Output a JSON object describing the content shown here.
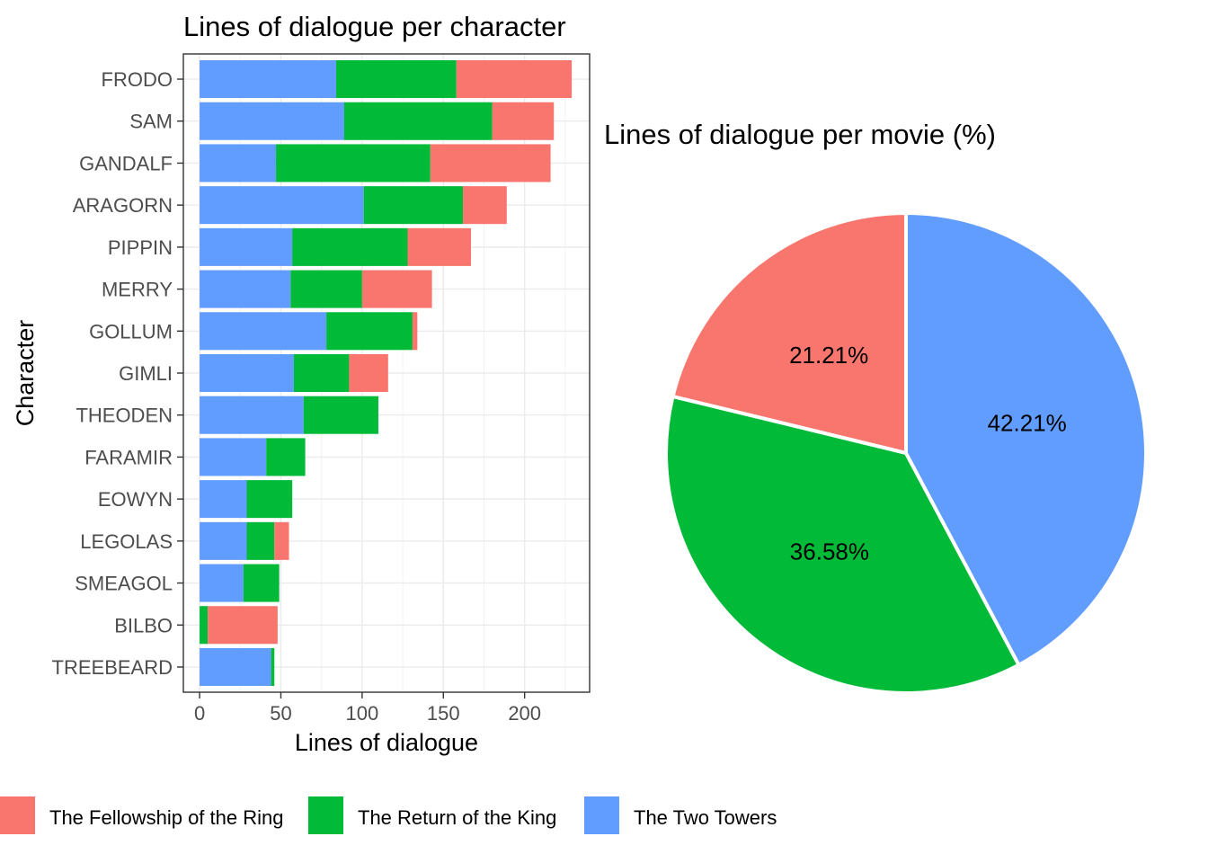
{
  "chart_data": [
    {
      "type": "bar",
      "stacked": true,
      "orientation": "horizontal",
      "title": "Lines of dialogue per character",
      "xlabel": "Lines of dialogue",
      "ylabel": "Character",
      "xlim": [
        -10,
        240
      ],
      "xticks": [
        0,
        50,
        100,
        150,
        200
      ],
      "grid": true,
      "categories": [
        "FRODO",
        "SAM",
        "GANDALF",
        "ARAGORN",
        "PIPPIN",
        "MERRY",
        "GOLLUM",
        "GIMLI",
        "THEODEN",
        "FARAMIR",
        "EOWYN",
        "LEGOLAS",
        "SMEAGOL",
        "BILBO",
        "TREEBEARD"
      ],
      "series": [
        {
          "name": "The Two Towers",
          "color": "#619CFF",
          "values": [
            84,
            89,
            47,
            101,
            57,
            56,
            78,
            58,
            64,
            41,
            29,
            29,
            27,
            0,
            44
          ]
        },
        {
          "name": "The Return of the King",
          "color": "#00BA38",
          "values": [
            74,
            91,
            95,
            61,
            71,
            44,
            53,
            34,
            46,
            24,
            28,
            17,
            22,
            5,
            2
          ]
        },
        {
          "name": "The Fellowship of the Ring",
          "color": "#F8766D",
          "values": [
            71,
            38,
            74,
            27,
            39,
            43,
            3,
            24,
            0,
            0,
            0,
            9,
            0,
            43,
            0
          ]
        }
      ]
    },
    {
      "type": "pie",
      "title": "Lines of dialogue per movie (%)",
      "slices": [
        {
          "name": "The Fellowship of the Ring",
          "value": 21.21,
          "label": "21.21%",
          "color": "#F8766D"
        },
        {
          "name": "The Return of the King",
          "value": 36.58,
          "label": "36.58%",
          "color": "#00BA38"
        },
        {
          "name": "The Two Towers",
          "value": 42.21,
          "label": "42.21%",
          "color": "#619CFF"
        }
      ]
    }
  ],
  "legend": {
    "position": "bottom",
    "items": [
      {
        "label": "The Fellowship of the Ring",
        "color": "#F8766D"
      },
      {
        "label": "The Return of the King",
        "color": "#00BA38"
      },
      {
        "label": "The Two Towers",
        "color": "#619CFF"
      }
    ]
  }
}
